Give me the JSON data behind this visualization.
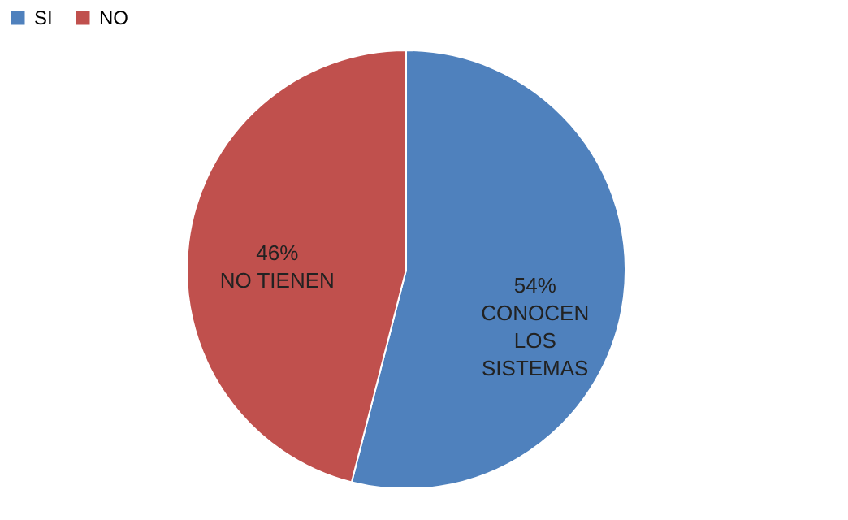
{
  "chart_data": {
    "type": "pie",
    "categories": [
      "SI",
      "NO"
    ],
    "values": [
      54,
      46
    ],
    "colors": [
      "#4f81bd",
      "#c0504d"
    ],
    "value_labels": [
      "54%\nCONOCEN\nLOS\nSISTEMAS",
      "46%\nNO TIENEN"
    ],
    "legend": "top"
  }
}
